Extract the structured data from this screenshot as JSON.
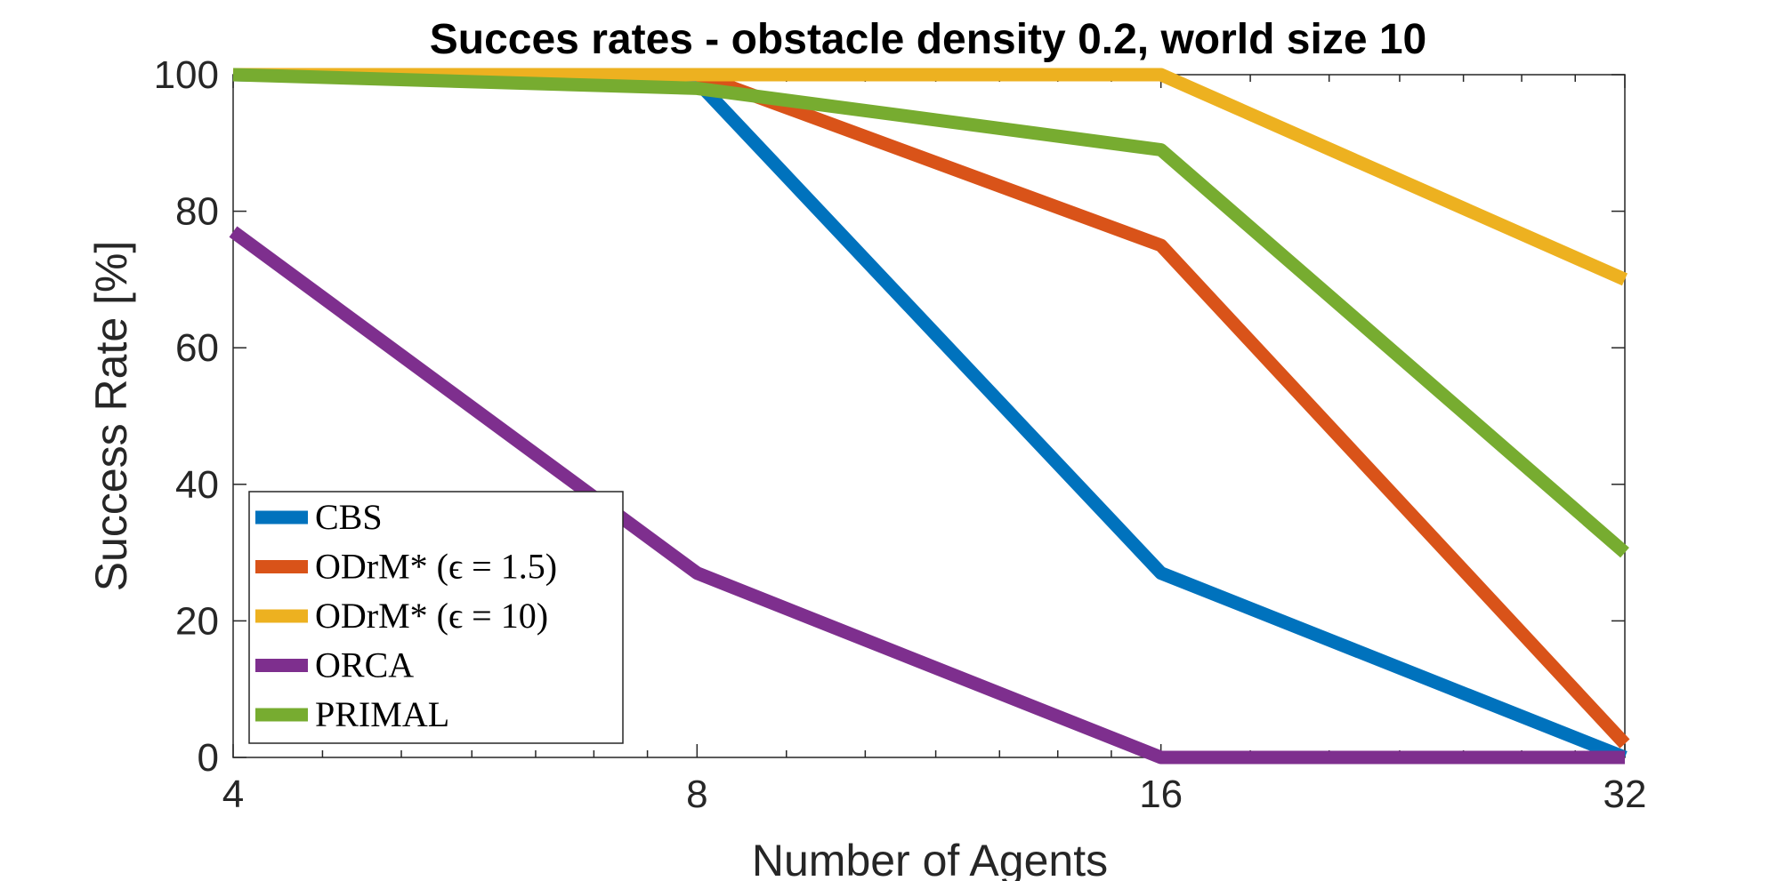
{
  "chart_data": {
    "type": "line",
    "title": "Succes rates - obstacle density 0.2, world size 10",
    "xlabel": "Number of Agents",
    "ylabel": "Success Rate [%]",
    "x_scale": "log2",
    "x": [
      4,
      8,
      16,
      32
    ],
    "x_ticks": [
      "4",
      "8",
      "16",
      "32"
    ],
    "xlim": [
      4,
      32
    ],
    "ylim": [
      0,
      100
    ],
    "y_ticks": [
      "0",
      "20",
      "40",
      "60",
      "80",
      "100"
    ],
    "legend_position": "bottom-left",
    "series": [
      {
        "name": "CBS",
        "color": "#0072BD",
        "values": [
          100,
          99,
          27,
          0
        ]
      },
      {
        "name": "ODrM* (ϵ = 1.5)",
        "color": "#D95319",
        "values": [
          100,
          100,
          75,
          2
        ]
      },
      {
        "name": "ODrM* (ϵ = 10)",
        "color": "#EDB120",
        "values": [
          100,
          100,
          100,
          70
        ]
      },
      {
        "name": "ORCA",
        "color": "#7E2F8E",
        "values": [
          77,
          27,
          0,
          0
        ]
      },
      {
        "name": "PRIMAL",
        "color": "#77AC30",
        "values": [
          100,
          98,
          89,
          30
        ]
      }
    ]
  }
}
